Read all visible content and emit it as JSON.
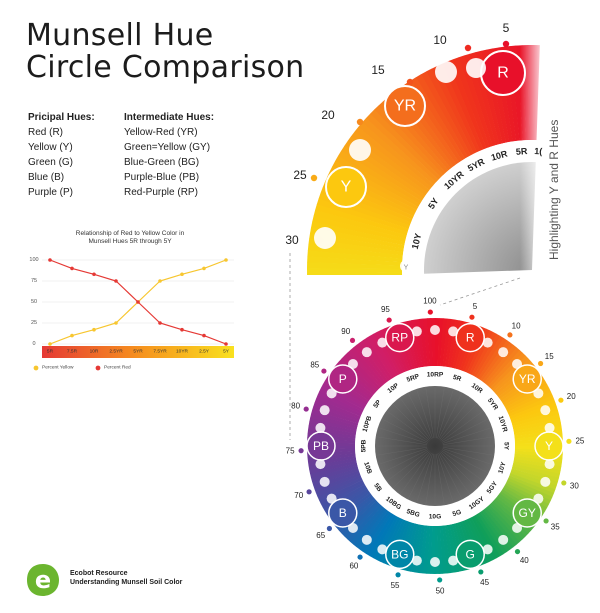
{
  "title": {
    "line1": "Munsell Hue",
    "line2": "Circle Comparison"
  },
  "principal": {
    "header": "Pricipal Hues:",
    "items": [
      "Red (R)",
      "Yellow (Y)",
      "Green (G)",
      "Blue (B)",
      "Purple (P)"
    ]
  },
  "intermediate": {
    "header": "Intermediate Hues:",
    "items": [
      "Yellow-Red (YR)",
      "Green=Yellow (GY)",
      "Blue-Green (BG)",
      "Purple-Blue (PB)",
      "Red-Purple (RP)"
    ]
  },
  "side_label": "Highlighting Y and R Hues",
  "chart_data": {
    "type": "line",
    "title_lines": [
      "Relationship of Red to Yellow Color in",
      "Munsell Hues 5R through 5Y"
    ],
    "categories": [
      "5R",
      "7.5R",
      "10R",
      "2.5YR",
      "5YR",
      "7.5YR",
      "10YR",
      "2.5Y",
      "5Y"
    ],
    "series": [
      {
        "name": "Percent Yellow",
        "color": "#f7c62f",
        "values": [
          0,
          10,
          17,
          25,
          50,
          75,
          83,
          90,
          100
        ]
      },
      {
        "name": "Percent Red",
        "color": "#e53935",
        "values": [
          100,
          90,
          83,
          75,
          50,
          25,
          17,
          10,
          0
        ]
      }
    ],
    "yticks": [
      0,
      25,
      50,
      75,
      100
    ],
    "ylim": [
      0,
      100
    ],
    "grid": true,
    "legend": "bottom"
  },
  "top_wheel": {
    "numbers": [
      "5",
      "10",
      "15",
      "20",
      "25",
      "30"
    ],
    "big_labels": [
      "R",
      "YR",
      "Y"
    ],
    "ring_labels": [
      "5R",
      "10R",
      "5YR",
      "10YR",
      "5Y",
      "10Y",
      "1("
    ],
    "cut_label": "Y"
  },
  "bottom_wheel": {
    "numbers": [
      "5",
      "10",
      "15",
      "20",
      "25",
      "30",
      "35",
      "40",
      "45",
      "50",
      "55",
      "60",
      "65",
      "70",
      "75",
      "80",
      "85",
      "90",
      "95",
      "100"
    ],
    "big_labels": [
      "R",
      "YR",
      "Y",
      "GY",
      "G",
      "BG",
      "B",
      "PB",
      "P",
      "RP"
    ],
    "ring_labels": [
      "5R",
      "10R",
      "5YR",
      "10YR",
      "5Y",
      "10Y",
      "5GY",
      "10GY",
      "5G",
      "10G",
      "5BG",
      "10BG",
      "5B",
      "10B",
      "5PB",
      "10PB",
      "5P",
      "10P",
      "5RP",
      "10RP"
    ]
  },
  "logo": {
    "mark": "e",
    "line1": "Ecobot Resource",
    "line2": "Understanding Munsell Soil Color",
    "color": "#6bb52f"
  }
}
